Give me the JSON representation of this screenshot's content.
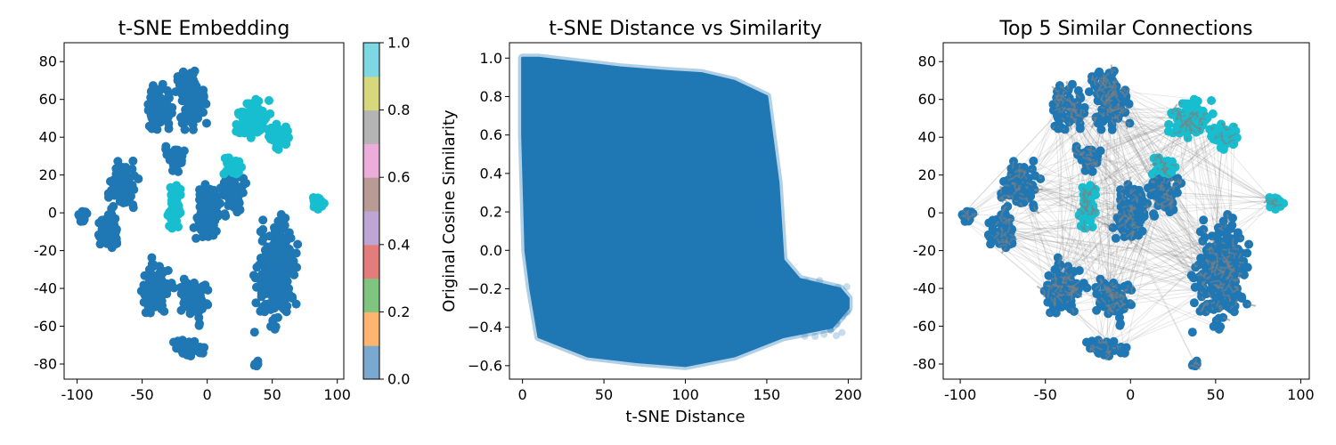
{
  "chart_data": [
    {
      "type": "scatter",
      "title": "t-SNE Embedding",
      "xlabel": "",
      "ylabel": "",
      "xlim": [
        -110,
        105
      ],
      "ylim": [
        -88,
        90
      ],
      "xticks": [
        -100,
        -50,
        0,
        50,
        100
      ],
      "yticks": [
        -80,
        -60,
        -40,
        -20,
        0,
        20,
        40,
        60,
        80
      ],
      "grid": false,
      "colorbar": {
        "colormap": "tab10",
        "range": [
          0,
          1
        ],
        "ticks": [
          "0.0",
          "0.2",
          "0.4",
          "0.6",
          "0.8",
          "1.0"
        ],
        "colors": [
          "#7aa8ce",
          "#ffb570",
          "#7fc47f",
          "#e57c7c",
          "#bda5d4",
          "#b89b94",
          "#edaddb",
          "#b4b4b4",
          "#d7d77c",
          "#7ed8e3"
        ]
      },
      "series_colors": {
        "class_0": "#1f77b4",
        "class_1": "#17becf"
      },
      "clusters": [
        {
          "cx": 53,
          "cy": -32,
          "rx": 20,
          "ry": 36,
          "class": 0
        },
        {
          "cx": -38,
          "cy": 55,
          "rx": 14,
          "ry": 16,
          "class": 0
        },
        {
          "cx": -10,
          "cy": 55,
          "rx": 14,
          "ry": 16,
          "class": 0
        },
        {
          "cx": -15,
          "cy": 68,
          "rx": 12,
          "ry": 10,
          "class": 0
        },
        {
          "cx": -65,
          "cy": 15,
          "rx": 14,
          "ry": 16,
          "class": 0
        },
        {
          "cx": -75,
          "cy": -10,
          "rx": 12,
          "ry": 14,
          "class": 0
        },
        {
          "cx": -96,
          "cy": -2,
          "rx": 5,
          "ry": 6,
          "class": 0
        },
        {
          "cx": -40,
          "cy": -40,
          "rx": 16,
          "ry": 18,
          "class": 0
        },
        {
          "cx": -10,
          "cy": -45,
          "rx": 14,
          "ry": 16,
          "class": 0
        },
        {
          "cx": -15,
          "cy": -72,
          "rx": 16,
          "ry": 6,
          "class": 0
        },
        {
          "cx": 0,
          "cy": 0,
          "rx": 12,
          "ry": 20,
          "class": 0
        },
        {
          "cx": 20,
          "cy": 10,
          "rx": 14,
          "ry": 14,
          "class": 0
        },
        {
          "cx": -25,
          "cy": 30,
          "rx": 10,
          "ry": 10,
          "class": 0
        },
        {
          "cx": 38,
          "cy": -80,
          "rx": 3,
          "ry": 2,
          "class": 0
        },
        {
          "cx": 35,
          "cy": 50,
          "rx": 18,
          "ry": 14,
          "class": 1
        },
        {
          "cx": 55,
          "cy": 40,
          "rx": 14,
          "ry": 8,
          "class": 1
        },
        {
          "cx": 85,
          "cy": 5,
          "rx": 7,
          "ry": 5,
          "class": 1
        },
        {
          "cx": -25,
          "cy": 5,
          "rx": 8,
          "ry": 18,
          "class": 1
        },
        {
          "cx": 20,
          "cy": 25,
          "rx": 8,
          "ry": 8,
          "class": 1
        }
      ]
    },
    {
      "type": "scatter",
      "title": "t-SNE Distance vs Similarity",
      "xlabel": "t-SNE Distance",
      "ylabel": "Original Cosine Similarity",
      "xlim": [
        -8,
        208
      ],
      "ylim": [
        -0.67,
        1.08
      ],
      "xticks": [
        0,
        50,
        100,
        150,
        200
      ],
      "yticks": [
        -0.6,
        -0.4,
        -0.2,
        0.0,
        0.2,
        0.4,
        0.6,
        0.8,
        1.0
      ],
      "ytick_labels": [
        "−0.6",
        "−0.4",
        "−0.2",
        "0.0",
        "0.2",
        "0.4",
        "0.6",
        "0.8",
        "1.0"
      ],
      "grid": false,
      "point_color": "#1f77b4",
      "envelope": {
        "upper": [
          [
            0,
            1.0
          ],
          [
            10,
            1.0
          ],
          [
            30,
            0.98
          ],
          [
            60,
            0.95
          ],
          [
            90,
            0.93
          ],
          [
            110,
            0.92
          ],
          [
            130,
            0.88
          ],
          [
            150,
            0.8
          ],
          [
            157,
            0.35
          ],
          [
            160,
            -0.05
          ],
          [
            170,
            -0.15
          ],
          [
            195,
            -0.2
          ],
          [
            200,
            -0.25
          ]
        ],
        "lower": [
          [
            200,
            -0.3
          ],
          [
            190,
            -0.4
          ],
          [
            160,
            -0.45
          ],
          [
            130,
            -0.55
          ],
          [
            100,
            -0.6
          ],
          [
            70,
            -0.58
          ],
          [
            40,
            -0.55
          ],
          [
            10,
            -0.45
          ],
          [
            5,
            -0.2
          ],
          [
            2,
            0.0
          ],
          [
            0,
            0.6
          ]
        ]
      }
    },
    {
      "type": "scatter",
      "title": "Top 5 Similar Connections",
      "xlabel": "",
      "ylabel": "",
      "xlim": [
        -110,
        105
      ],
      "ylim": [
        -88,
        90
      ],
      "xticks": [
        -100,
        -50,
        0,
        50,
        100
      ],
      "yticks": [
        -80,
        -60,
        -40,
        -20,
        0,
        20,
        40,
        60,
        80
      ],
      "grid": false,
      "edge_color": "#7f7f7f",
      "series_colors": {
        "class_0": "#1f77b4",
        "class_1": "#17becf"
      }
    }
  ]
}
